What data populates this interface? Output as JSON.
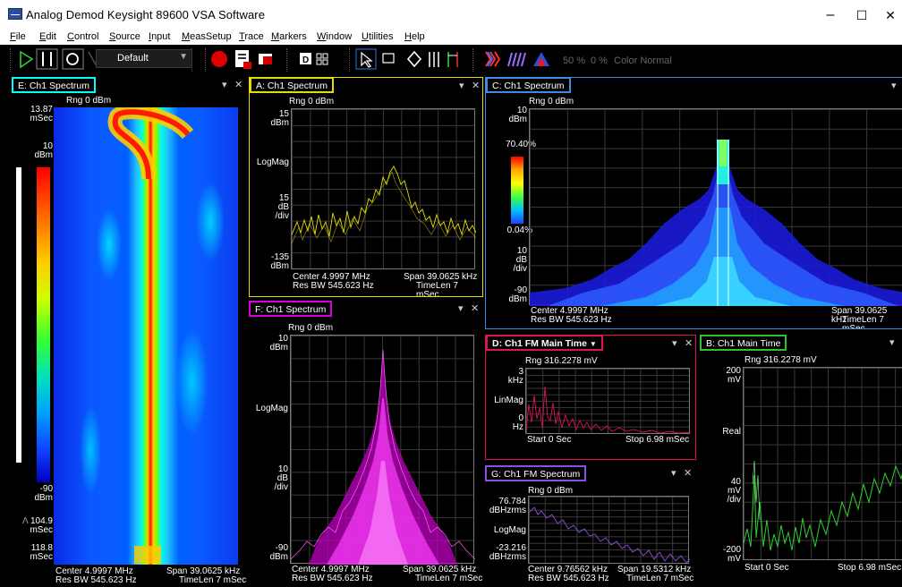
{
  "window": {
    "title": "Analog Demod   Keysight 89600 VSA Software",
    "min": "–",
    "max": "☐",
    "close": "✕"
  },
  "menu": [
    "File",
    "Edit",
    "Control",
    "Source",
    "Input",
    "MeasSetup",
    "Trace",
    "Markers",
    "Window",
    "Utilities",
    "Help"
  ],
  "toolbar": {
    "preset": "Default",
    "zoom_a": "50 %",
    "zoom_b": "0 %",
    "color_mode": "Color Normal"
  },
  "panels": {
    "E": {
      "title": "E: Ch1 Spectrum",
      "color": "#00ffff",
      "rng": "Rng 0 dBm",
      "y_top": "13.87",
      "y_top_u": "mSec",
      "scale_top": "10",
      "scale_top_u": "dBm",
      "scale_bot": "-90",
      "scale_bot_u": "dBm",
      "y_mid": "104.9",
      "y_mid_u": "mSec",
      "y_mid_mark": "Λ",
      "y_bot": "118.8",
      "y_bot_u": "mSec",
      "center": "Center 4.9997 MHz",
      "span": "Span 39.0625 kHz",
      "rbw": "Res BW 545.623  Hz",
      "timelen": "TimeLen 7 mSec"
    },
    "A": {
      "title": "A: Ch1 Spectrum",
      "color": "#e6dc00",
      "rng": "Rng 0 dBm",
      "y_top": "15",
      "y_top_u": "dBm",
      "fmt": "LogMag",
      "div": "15",
      "div_u1": "dB",
      "div_u2": "/div",
      "y_bot": "-135",
      "y_bot_u": "dBm",
      "center": "Center 4.9997 MHz",
      "span": "Span 39.0625 kHz",
      "rbw": "Res BW 545.623  Hz",
      "timelen": "TimeLen 7 mSec"
    },
    "C": {
      "title": "C: Ch1 Spectrum",
      "color": "#3f8be0",
      "rng": "Rng 0 dBm",
      "y_top": "10",
      "y_top_u": "dBm",
      "pct_top": "70.40%",
      "pct_bot": "0.04%",
      "div": "10",
      "div_u1": "dB",
      "div_u2": "/div",
      "y_bot": "-90",
      "y_bot_u": "dBm",
      "center": "Center 4.9997 MHz",
      "span": "Span 39.0625 kHz",
      "rbw": "Res BW 545.623  Hz",
      "timelen": "TimeLen 7 mSec"
    },
    "F": {
      "title": "F: Ch1 Spectrum",
      "color": "#d800d8",
      "rng": "Rng 0 dBm",
      "y_top": "10",
      "y_top_u": "dBm",
      "fmt": "LogMag",
      "div": "10",
      "div_u1": "dB",
      "div_u2": "/div",
      "y_bot": "-90",
      "y_bot_u": "dBm",
      "center": "Center 4.9997 MHz",
      "span": "Span 39.0625 kHz",
      "rbw": "Res BW 545.623  Hz",
      "timelen": "TimeLen 7 mSec"
    },
    "D": {
      "title": "D: Ch1 FM Main Time",
      "dropdown": "▼",
      "color": "#e0105a",
      "rng": "Rng 316.2278 mV",
      "y_top": "3",
      "y_top_u": "kHz",
      "fmt": "LinMag",
      "y_bot": "0",
      "y_bot_u": "Hz",
      "start": "Start 0  Sec",
      "stop": "Stop 6.98 mSec"
    },
    "G": {
      "title": "G: Ch1 FM Spectrum",
      "color": "#8c50e0",
      "rng": "Rng 0 dBm",
      "y_top": "76.784",
      "y_top_u": "dBHzrms",
      "fmt": "LogMag",
      "y_bot": "-23.216",
      "y_bot_u": "dBHzrms",
      "center": "Center 9.76562 kHz",
      "span": "Span 19.5312 kHz",
      "rbw": "Res BW 545.623  Hz",
      "timelen": "TimeLen 7 mSec"
    },
    "B": {
      "title": "B: Ch1 Main Time",
      "color": "#30c030",
      "rng": "Rng 316.2278 mV",
      "y_top": "200",
      "y_top_u": "mV",
      "fmt": "Real",
      "div": "40",
      "div_u1": "mV",
      "div_u2": "/div",
      "y_bot": "-200",
      "y_bot_u": "mV",
      "start": "Start 0  Sec",
      "stop": "Stop 6.98 mSec"
    }
  },
  "panel_ctl": {
    "pin": "▾",
    "close": "✕"
  }
}
